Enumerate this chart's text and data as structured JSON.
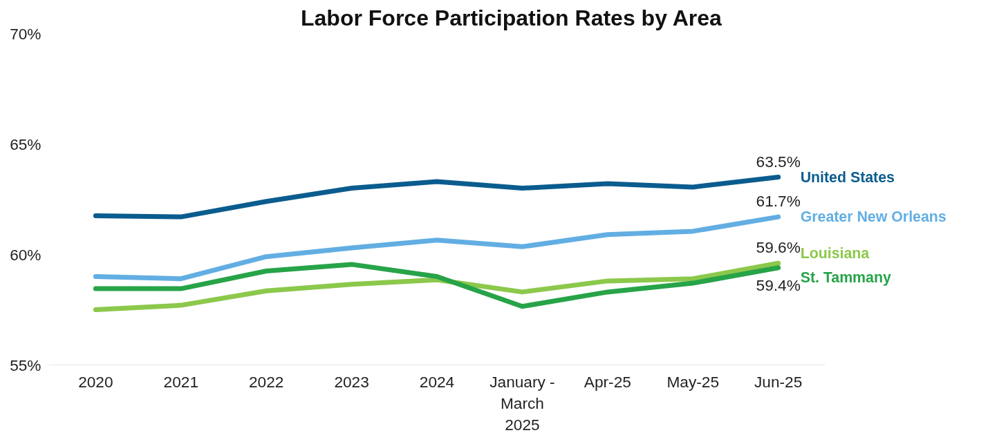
{
  "chart_data": {
    "type": "line",
    "title": "Labor Force Participation Rates by Area",
    "categories": [
      "2020",
      "2021",
      "2022",
      "2023",
      "2024",
      "January - March 2025",
      "Apr-25",
      "May-25",
      "Jun-25"
    ],
    "series": [
      {
        "name": "United States",
        "color": "#0b5c8e",
        "values": [
          61.75,
          61.7,
          62.4,
          63.0,
          63.3,
          63.0,
          63.2,
          63.05,
          63.5
        ],
        "value_labels": [
          null,
          null,
          null,
          null,
          null,
          null,
          null,
          null,
          "63.5%"
        ]
      },
      {
        "name": "Greater New Orleans",
        "color": "#62aee3",
        "values": [
          59.0,
          58.9,
          59.9,
          60.3,
          60.65,
          60.35,
          60.9,
          61.05,
          61.7
        ],
        "value_labels": [
          null,
          null,
          null,
          null,
          null,
          null,
          null,
          null,
          "61.7%"
        ]
      },
      {
        "name": "Louisiana",
        "color": "#8cc84b",
        "values": [
          57.5,
          57.7,
          58.35,
          58.65,
          58.85,
          58.3,
          58.8,
          58.9,
          59.6
        ],
        "value_labels": [
          null,
          null,
          null,
          null,
          null,
          null,
          null,
          null,
          "59.6%"
        ]
      },
      {
        "name": "St. Tammany",
        "color": "#27a348",
        "values": [
          58.45,
          58.45,
          59.25,
          59.55,
          59.0,
          57.65,
          58.3,
          58.7,
          59.4
        ],
        "value_labels": [
          null,
          null,
          null,
          null,
          null,
          null,
          null,
          null,
          "59.4%"
        ]
      }
    ],
    "ylim": [
      55,
      70
    ],
    "yticks": [
      {
        "value": 55,
        "label": "55%"
      },
      {
        "value": 60,
        "label": "60%"
      },
      {
        "value": 65,
        "label": "65%"
      },
      {
        "value": 70,
        "label": "70%"
      }
    ],
    "grid": false,
    "legend": false,
    "marker": "none",
    "line_style": "solid"
  }
}
